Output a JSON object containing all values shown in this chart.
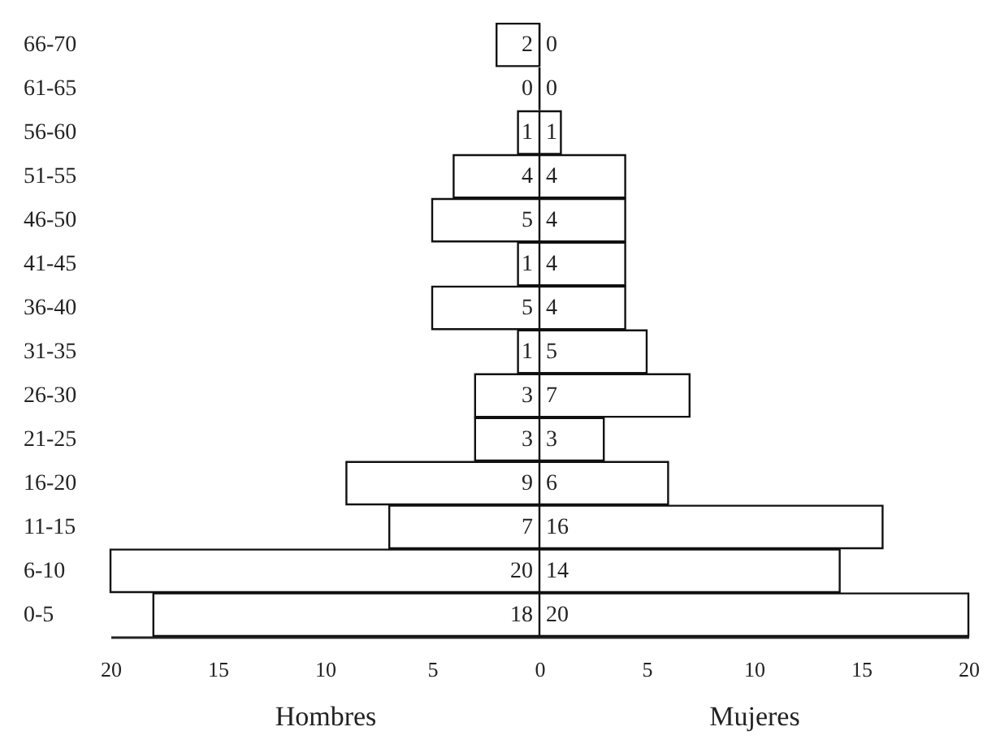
{
  "chart_data": [
    {
      "type": "bar",
      "orientation": "horizontal",
      "xlabel": "Hombres",
      "data_labels": true,
      "categories": [
        "66-70",
        "61-65",
        "56-60",
        "51-55",
        "46-50",
        "41-45",
        "36-40",
        "31-35",
        "26-30",
        "21-25",
        "16-20",
        "11-15",
        "6-10",
        "0-5"
      ],
      "values": [
        2,
        0,
        1,
        4,
        5,
        1,
        5,
        1,
        3,
        3,
        9,
        7,
        20,
        18
      ],
      "xlim": [
        20,
        0
      ],
      "xticks": [
        20,
        15,
        10,
        5,
        0
      ],
      "grid": false
    },
    {
      "type": "bar",
      "orientation": "horizontal",
      "xlabel": "Mujeres",
      "data_labels": true,
      "categories": [
        "66-70",
        "61-65",
        "56-60",
        "51-55",
        "46-50",
        "41-45",
        "36-40",
        "31-35",
        "26-30",
        "21-25",
        "16-20",
        "11-15",
        "6-10",
        "0-5"
      ],
      "values": [
        0,
        0,
        1,
        4,
        4,
        4,
        4,
        5,
        7,
        3,
        6,
        16,
        14,
        20
      ],
      "xlim": [
        0,
        20
      ],
      "xticks": [
        5,
        10,
        15,
        20
      ],
      "grid": false,
      "tick_labels": "x"
    }
  ]
}
